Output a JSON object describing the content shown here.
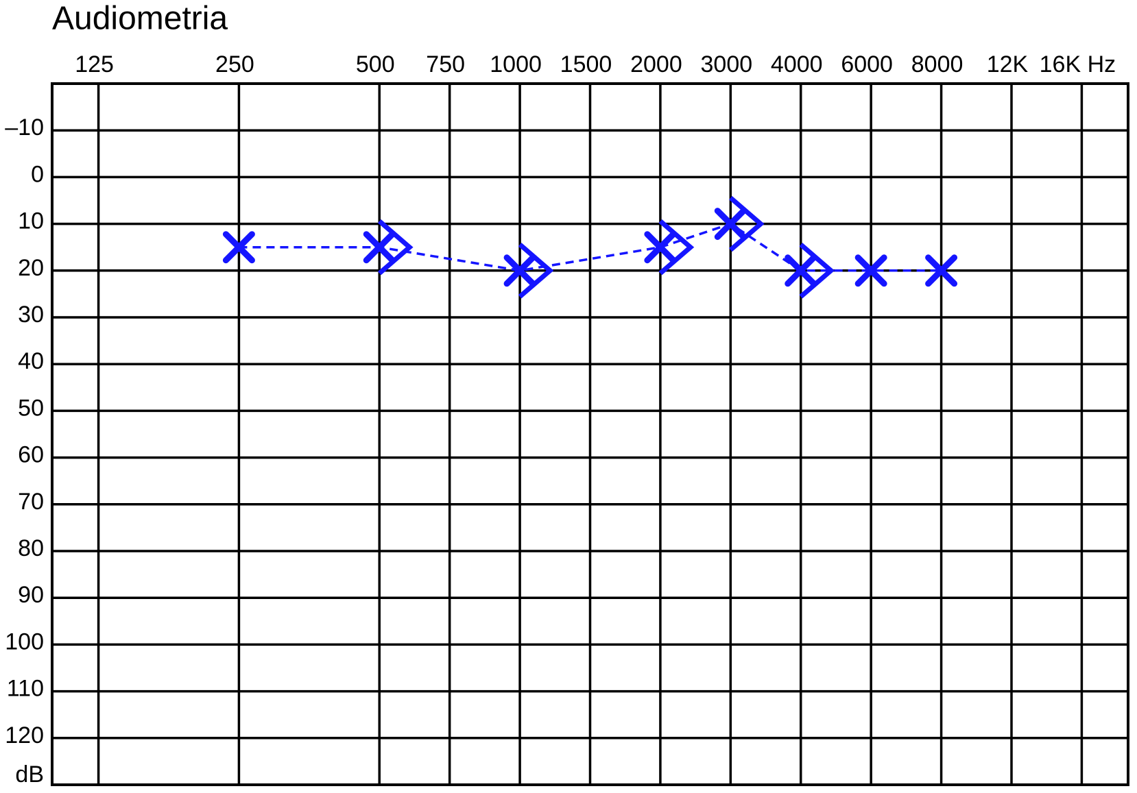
{
  "chart_data": {
    "type": "audiogram",
    "title": "Audiometria",
    "y_label": "dB",
    "categories": [
      "125",
      null,
      "250",
      null,
      "500",
      "750",
      "1000",
      "1500",
      "2000",
      "3000",
      "4000",
      "6000",
      "8000",
      "12K",
      "16K Hz"
    ],
    "ylim": [
      -20,
      130
    ],
    "yticks": [
      {
        "value": -10,
        "label": "–10"
      },
      0,
      10,
      20,
      30,
      40,
      50,
      60,
      70,
      80,
      90,
      100,
      110,
      120
    ],
    "y_inverted": true,
    "grid": true,
    "series": [
      {
        "marker": "x",
        "color": "#1515ff",
        "line": "dashed",
        "x": [
          "250",
          "500",
          "1000",
          "2000",
          "3000",
          "4000",
          "6000",
          "8000"
        ],
        "values": [
          15,
          15,
          20,
          15,
          10,
          20,
          20,
          20
        ]
      },
      {
        "marker": ">",
        "color": "#1515ff",
        "line": "none",
        "x": [
          "500",
          "1000",
          "2000",
          "3000",
          "4000"
        ],
        "values": [
          15,
          20,
          15,
          10,
          20
        ]
      }
    ]
  }
}
